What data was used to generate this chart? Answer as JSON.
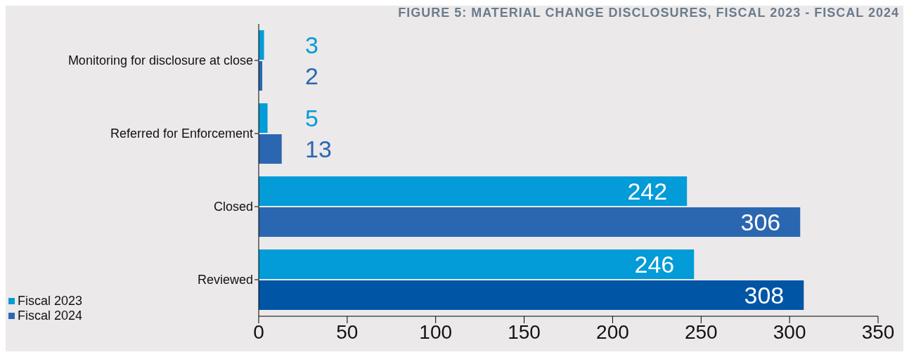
{
  "chart_data": {
    "type": "bar",
    "orientation": "horizontal",
    "title": "FIGURE 5: MATERIAL CHANGE DISCLOSURES, FISCAL 2023 - FISCAL 2024",
    "categories": [
      "Monitoring for disclosure at close",
      "Referred for Enforcement",
      "Closed",
      "Reviewed"
    ],
    "series": [
      {
        "name": "Fiscal 2023",
        "color": "#039bd8",
        "values": [
          3,
          5,
          242,
          246
        ]
      },
      {
        "name": "Fiscal 2024",
        "color": "#2b67b1",
        "colors": [
          "#2b67b1",
          "#2b67b1",
          "#2b67b1",
          "#0055a5"
        ],
        "values": [
          2,
          13,
          306,
          308
        ]
      }
    ],
    "xlim": [
      0,
      350
    ],
    "xticks": [
      0,
      50,
      100,
      150,
      200,
      250,
      300,
      350
    ],
    "data_labels": true,
    "legend": "bottom left"
  }
}
